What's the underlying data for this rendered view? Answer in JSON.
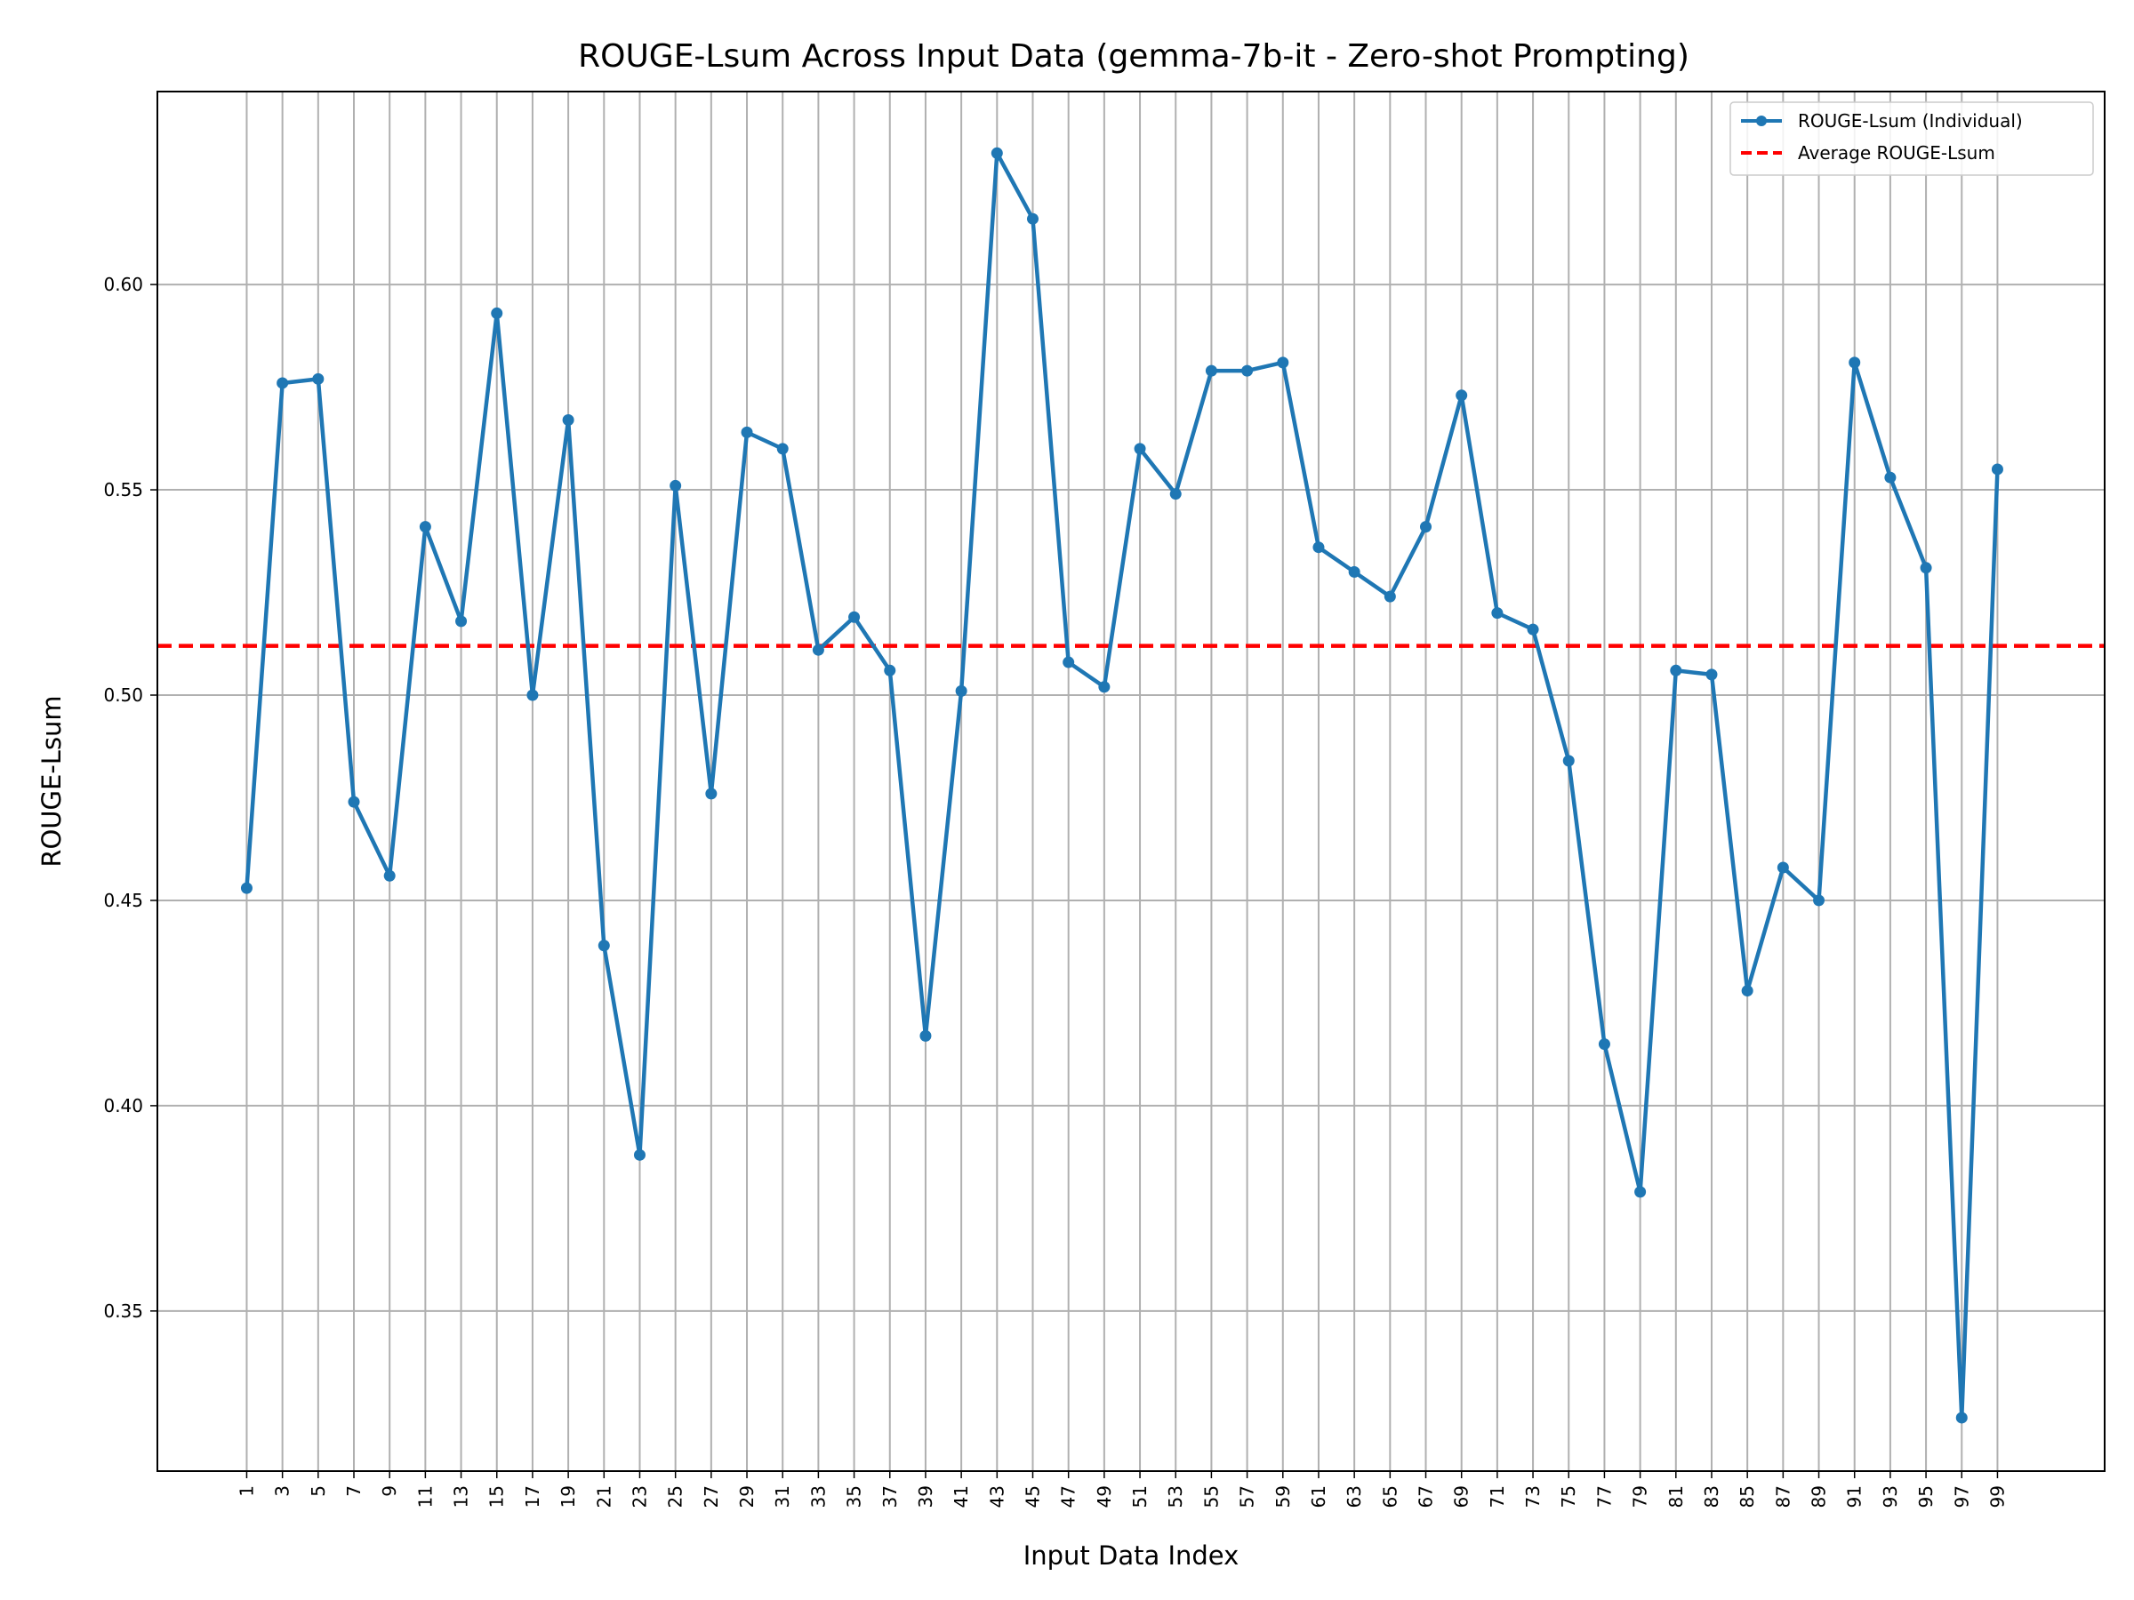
{
  "chart_data": {
    "type": "line",
    "title": "ROUGE-Lsum Across Input Data (gemma-7b-it - Zero-shot Prompting)",
    "xlabel": "Input Data Index",
    "ylabel": "ROUGE-Lsum",
    "x": [
      1,
      3,
      5,
      7,
      9,
      11,
      13,
      15,
      17,
      19,
      21,
      23,
      25,
      27,
      29,
      31,
      33,
      35,
      37,
      39,
      41,
      43,
      45,
      47,
      49,
      51,
      53,
      55,
      57,
      59,
      61,
      63,
      65,
      67,
      69,
      71,
      73,
      75,
      77,
      79,
      81,
      83,
      85,
      87,
      89,
      91,
      93,
      95,
      97,
      99
    ],
    "xticks": [
      "1",
      "3",
      "5",
      "7",
      "9",
      "11",
      "13",
      "15",
      "17",
      "19",
      "21",
      "23",
      "25",
      "27",
      "29",
      "31",
      "33",
      "35",
      "37",
      "39",
      "41",
      "43",
      "45",
      "47",
      "49",
      "51",
      "53",
      "55",
      "57",
      "59",
      "61",
      "63",
      "65",
      "67",
      "69",
      "71",
      "73",
      "75",
      "77",
      "79",
      "81",
      "83",
      "85",
      "87",
      "89",
      "91",
      "93",
      "95",
      "97",
      "99"
    ],
    "xlim": [
      -4,
      105
    ],
    "ylim": [
      0.311,
      0.647
    ],
    "yticks": [
      0.35,
      0.4,
      0.45,
      0.5,
      0.55,
      0.6
    ],
    "ytick_labels": [
      "0.35",
      "0.40",
      "0.45",
      "0.50",
      "0.55",
      "0.60"
    ],
    "grid": true,
    "legend_position": "top-right",
    "series": [
      {
        "name": "ROUGE-Lsum (Individual)",
        "color": "#1f77b4",
        "style": "solid-with-markers",
        "values": [
          0.453,
          0.576,
          0.577,
          0.474,
          0.456,
          0.541,
          0.518,
          0.593,
          0.5,
          0.567,
          0.439,
          0.388,
          0.551,
          0.476,
          0.564,
          0.56,
          0.511,
          0.519,
          0.506,
          0.417,
          0.501,
          0.632,
          0.616,
          0.508,
          0.502,
          0.56,
          0.549,
          0.579,
          0.579,
          0.581,
          0.536,
          0.53,
          0.524,
          0.541,
          0.573,
          0.52,
          0.516,
          0.484,
          0.415,
          0.379,
          0.506,
          0.505,
          0.428,
          0.458,
          0.45,
          0.581,
          0.553,
          0.531,
          0.324,
          0.555
        ]
      },
      {
        "name": "Average ROUGE-Lsum",
        "color": "#ff0000",
        "style": "dashed",
        "constant": 0.512
      }
    ]
  }
}
